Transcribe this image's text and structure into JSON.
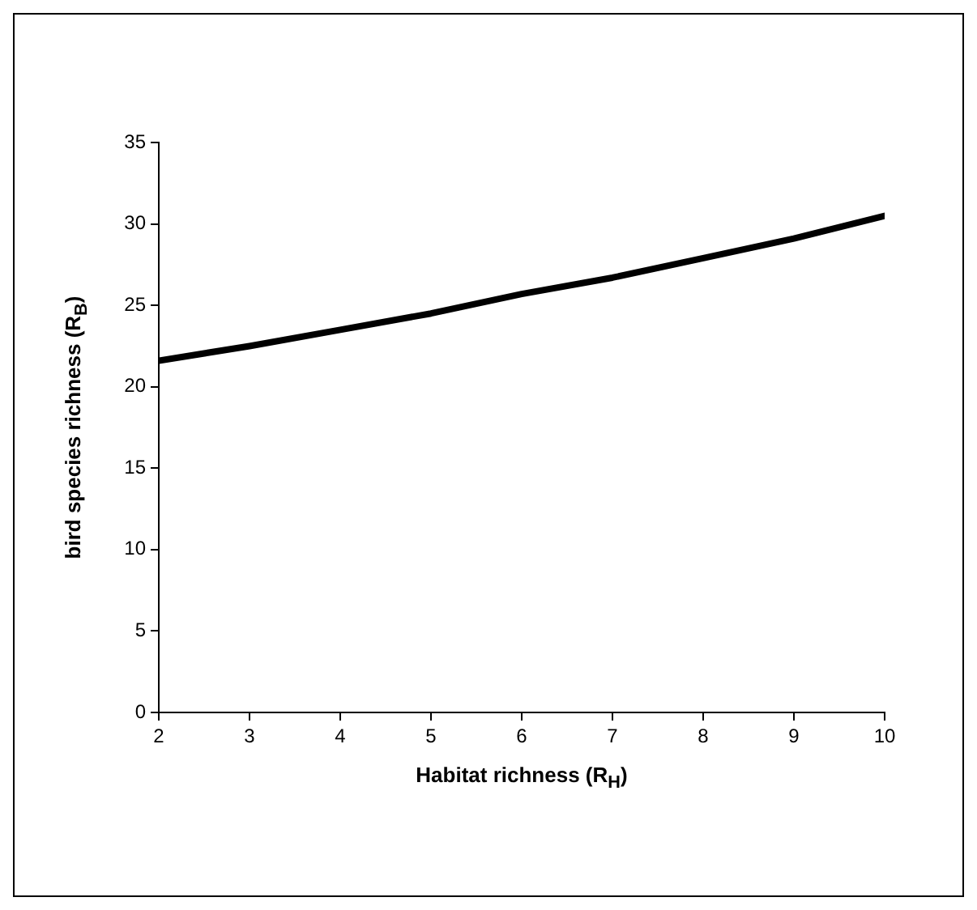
{
  "chart_data": {
    "type": "line",
    "xlabel": "Habitat richness (R$_{H}$)",
    "ylabel": "bird species richness (R$_{B}$)",
    "x": [
      2,
      3,
      4,
      5,
      6,
      7,
      8,
      9,
      10
    ],
    "series": [
      {
        "color": "#000000",
        "values": [
          21.6,
          22.5,
          23.5,
          24.5,
          25.7,
          26.7,
          27.9,
          29.1,
          30.5
        ]
      }
    ],
    "xlim": [
      2,
      10
    ],
    "xticks": [
      2,
      3,
      4,
      5,
      6,
      7,
      8,
      9,
      10
    ],
    "ylim": [
      0,
      35
    ],
    "yticks": [
      0,
      5,
      10,
      15,
      20,
      25,
      30,
      35
    ],
    "grid": false,
    "legend": false,
    "marker": "none",
    "line_style": "solid"
  }
}
